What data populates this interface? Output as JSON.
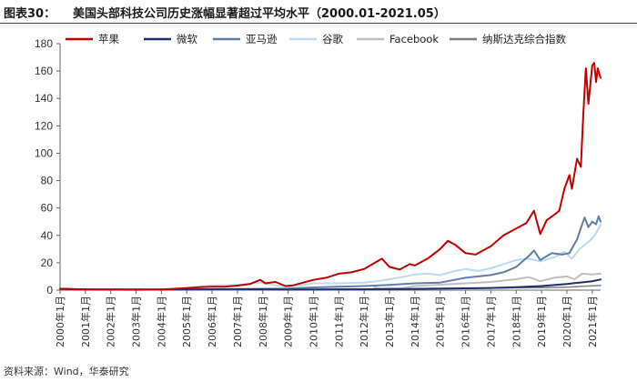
{
  "header": {
    "label": "图表30：",
    "title": "美国头部科技公司历史涨幅显著超过平均水平（2000.01-2021.05）"
  },
  "footer": {
    "source": "资料来源：Wind，华泰研究"
  },
  "chart_data": {
    "type": "line",
    "title": "",
    "xlabel": "",
    "ylabel": "",
    "ylim": [
      0,
      180
    ],
    "yticks": [
      0,
      20,
      40,
      60,
      80,
      100,
      120,
      140,
      160,
      180
    ],
    "xlim": [
      2000.0,
      2021.33
    ],
    "xticks": [
      "2000年1月",
      "2001年1月",
      "2002年1月",
      "2003年1月",
      "2004年1月",
      "2005年1月",
      "2006年1月",
      "2007年1月",
      "2008年1月",
      "2009年1月",
      "2010年1月",
      "2011年1月",
      "2012年1月",
      "2013年1月",
      "2014年1月",
      "2015年1月",
      "2016年1月",
      "2017年1月",
      "2018年1月",
      "2019年1月",
      "2020年1月",
      "2021年1月"
    ],
    "grid": false,
    "legend": "top",
    "series": [
      {
        "name": "苹果",
        "color": "#c00000",
        "width": 2,
        "points": [
          [
            2000.0,
            1.0
          ],
          [
            2001.0,
            0.3
          ],
          [
            2002.0,
            0.3
          ],
          [
            2003.0,
            0.25
          ],
          [
            2004.0,
            0.4
          ],
          [
            2004.5,
            1.0
          ],
          [
            2005.0,
            1.5
          ],
          [
            2005.5,
            2.2
          ],
          [
            2006.0,
            2.5
          ],
          [
            2006.5,
            2.5
          ],
          [
            2007.0,
            3.3
          ],
          [
            2007.5,
            4.5
          ],
          [
            2007.9,
            7.5
          ],
          [
            2008.1,
            5.0
          ],
          [
            2008.5,
            6.0
          ],
          [
            2008.9,
            3.0
          ],
          [
            2009.2,
            3.5
          ],
          [
            2009.6,
            5.5
          ],
          [
            2010.0,
            7.5
          ],
          [
            2010.5,
            9.0
          ],
          [
            2011.0,
            12.0
          ],
          [
            2011.5,
            13.0
          ],
          [
            2012.0,
            15.5
          ],
          [
            2012.7,
            23.0
          ],
          [
            2013.0,
            17.0
          ],
          [
            2013.4,
            15.0
          ],
          [
            2013.8,
            19.0
          ],
          [
            2014.0,
            18.0
          ],
          [
            2014.5,
            23.0
          ],
          [
            2015.0,
            30.0
          ],
          [
            2015.3,
            36.0
          ],
          [
            2015.6,
            33.0
          ],
          [
            2016.0,
            27.0
          ],
          [
            2016.4,
            26.0
          ],
          [
            2016.8,
            30.0
          ],
          [
            2017.0,
            32.0
          ],
          [
            2017.5,
            40.0
          ],
          [
            2018.0,
            45.0
          ],
          [
            2018.4,
            49.0
          ],
          [
            2018.7,
            58.0
          ],
          [
            2018.95,
            41.0
          ],
          [
            2019.2,
            51.0
          ],
          [
            2019.5,
            55.0
          ],
          [
            2019.7,
            58.0
          ],
          [
            2019.9,
            74.0
          ],
          [
            2020.1,
            84.0
          ],
          [
            2020.2,
            74.0
          ],
          [
            2020.4,
            96.0
          ],
          [
            2020.55,
            90.0
          ],
          [
            2020.65,
            130.0
          ],
          [
            2020.75,
            162.0
          ],
          [
            2020.85,
            136.0
          ],
          [
            2021.0,
            164.0
          ],
          [
            2021.08,
            166.0
          ],
          [
            2021.15,
            152.0
          ],
          [
            2021.22,
            162.0
          ],
          [
            2021.33,
            155.0
          ]
        ]
      },
      {
        "name": "微软",
        "color": "#1f2f6b",
        "width": 2,
        "points": [
          [
            2000.0,
            1.0
          ],
          [
            2001.0,
            0.6
          ],
          [
            2003.0,
            0.5
          ],
          [
            2005.0,
            0.55
          ],
          [
            2007.0,
            0.7
          ],
          [
            2008.0,
            0.6
          ],
          [
            2009.0,
            0.4
          ],
          [
            2011.0,
            0.6
          ],
          [
            2013.0,
            0.7
          ],
          [
            2014.0,
            0.9
          ],
          [
            2015.0,
            1.1
          ],
          [
            2016.0,
            1.3
          ],
          [
            2017.0,
            1.6
          ],
          [
            2018.0,
            2.2
          ],
          [
            2019.0,
            3.0
          ],
          [
            2020.0,
            4.5
          ],
          [
            2020.5,
            5.5
          ],
          [
            2021.0,
            6.5
          ],
          [
            2021.33,
            7.8
          ]
        ]
      },
      {
        "name": "亚马逊",
        "color": "#5f7fa8",
        "width": 2,
        "points": [
          [
            2000.0,
            1.0
          ],
          [
            2001.0,
            0.4
          ],
          [
            2002.0,
            0.35
          ],
          [
            2003.0,
            0.45
          ],
          [
            2004.0,
            0.6
          ],
          [
            2005.0,
            0.6
          ],
          [
            2006.0,
            0.6
          ],
          [
            2007.0,
            0.7
          ],
          [
            2008.0,
            1.0
          ],
          [
            2009.0,
            1.2
          ],
          [
            2010.0,
            2.0
          ],
          [
            2011.0,
            2.5
          ],
          [
            2012.0,
            3.0
          ],
          [
            2013.0,
            3.8
          ],
          [
            2014.0,
            5.0
          ],
          [
            2015.0,
            5.5
          ],
          [
            2016.0,
            9.0
          ],
          [
            2017.0,
            11.0
          ],
          [
            2017.5,
            13.0
          ],
          [
            2018.0,
            17.0
          ],
          [
            2018.5,
            25.0
          ],
          [
            2018.7,
            29.0
          ],
          [
            2018.95,
            22.0
          ],
          [
            2019.4,
            27.0
          ],
          [
            2019.8,
            26.0
          ],
          [
            2020.1,
            27.0
          ],
          [
            2020.4,
            37.0
          ],
          [
            2020.6,
            48.0
          ],
          [
            2020.7,
            53.0
          ],
          [
            2020.85,
            46.0
          ],
          [
            2021.0,
            50.0
          ],
          [
            2021.15,
            48.0
          ],
          [
            2021.25,
            54.0
          ],
          [
            2021.33,
            50.0
          ]
        ]
      },
      {
        "name": "谷歌",
        "color": "#b9dcf2",
        "width": 2,
        "points": [
          [
            2004.6,
            1.0
          ],
          [
            2005.5,
            2.5
          ],
          [
            2006.0,
            3.5
          ],
          [
            2007.0,
            3.8
          ],
          [
            2007.9,
            5.5
          ],
          [
            2008.5,
            3.5
          ],
          [
            2008.9,
            2.5
          ],
          [
            2009.5,
            3.5
          ],
          [
            2010.0,
            5.0
          ],
          [
            2011.0,
            5.0
          ],
          [
            2012.0,
            5.5
          ],
          [
            2012.5,
            6.5
          ],
          [
            2013.0,
            8.0
          ],
          [
            2013.5,
            9.5
          ],
          [
            2014.0,
            11.5
          ],
          [
            2014.5,
            12.0
          ],
          [
            2015.0,
            11.0
          ],
          [
            2015.6,
            14.0
          ],
          [
            2016.0,
            15.5
          ],
          [
            2016.5,
            14.0
          ],
          [
            2017.0,
            16.0
          ],
          [
            2017.5,
            19.0
          ],
          [
            2018.0,
            22.0
          ],
          [
            2018.5,
            23.0
          ],
          [
            2018.95,
            21.0
          ],
          [
            2019.5,
            24.0
          ],
          [
            2019.9,
            28.0
          ],
          [
            2020.2,
            23.0
          ],
          [
            2020.5,
            30.0
          ],
          [
            2020.9,
            36.0
          ],
          [
            2021.1,
            40.0
          ],
          [
            2021.25,
            45.0
          ],
          [
            2021.33,
            48.0
          ]
        ]
      },
      {
        "name": "Facebook",
        "color": "#bfbfbf",
        "width": 2,
        "points": [
          [
            2012.4,
            2.0
          ],
          [
            2012.7,
            1.2
          ],
          [
            2013.0,
            1.6
          ],
          [
            2013.5,
            1.5
          ],
          [
            2014.0,
            3.0
          ],
          [
            2015.0,
            4.0
          ],
          [
            2016.0,
            5.0
          ],
          [
            2017.0,
            6.0
          ],
          [
            2018.0,
            8.0
          ],
          [
            2018.5,
            9.5
          ],
          [
            2018.95,
            6.5
          ],
          [
            2019.5,
            9.0
          ],
          [
            2020.0,
            10.0
          ],
          [
            2020.3,
            8.0
          ],
          [
            2020.6,
            12.0
          ],
          [
            2021.0,
            11.5
          ],
          [
            2021.33,
            12.0
          ]
        ]
      },
      {
        "name": "纳斯达克综合指数",
        "color": "#7f7f7f",
        "width": 1.5,
        "points": [
          [
            2000.0,
            1.0
          ],
          [
            2000.5,
            0.9
          ],
          [
            2001.0,
            0.65
          ],
          [
            2002.0,
            0.4
          ],
          [
            2002.8,
            0.3
          ],
          [
            2004.0,
            0.5
          ],
          [
            2007.0,
            0.6
          ],
          [
            2008.9,
            0.35
          ],
          [
            2010.0,
            0.55
          ],
          [
            2012.0,
            0.7
          ],
          [
            2014.0,
            1.0
          ],
          [
            2016.0,
            1.2
          ],
          [
            2018.0,
            1.7
          ],
          [
            2019.0,
            1.8
          ],
          [
            2020.0,
            2.2
          ],
          [
            2021.0,
            3.2
          ],
          [
            2021.33,
            3.4
          ]
        ]
      }
    ]
  }
}
